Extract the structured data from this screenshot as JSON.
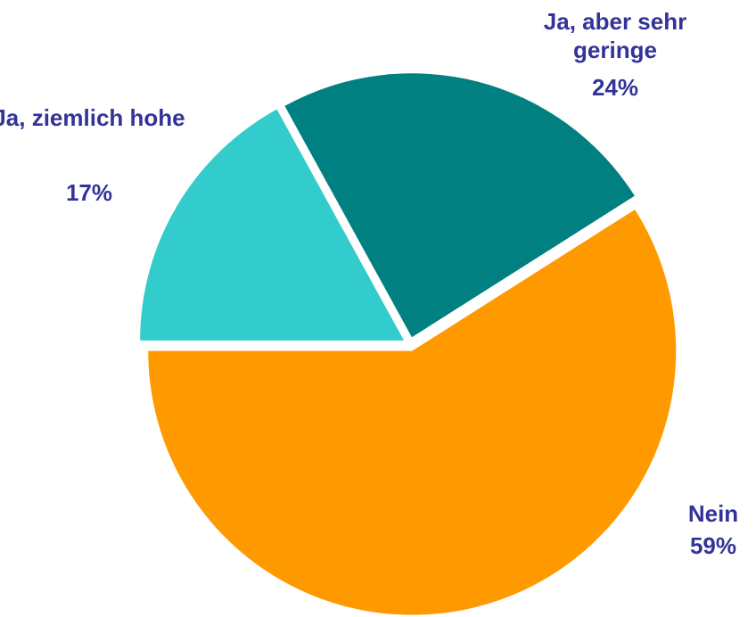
{
  "chart_data": {
    "type": "pie",
    "categories": [
      "Nein",
      "Ja, aber sehr geringe",
      "Ja, ziemlich hohe"
    ],
    "values": [
      59,
      24,
      17
    ],
    "value_labels": [
      "59%",
      "24%",
      "17%"
    ],
    "colors": [
      "#FF9900",
      "#008080",
      "#33CCCC"
    ]
  }
}
